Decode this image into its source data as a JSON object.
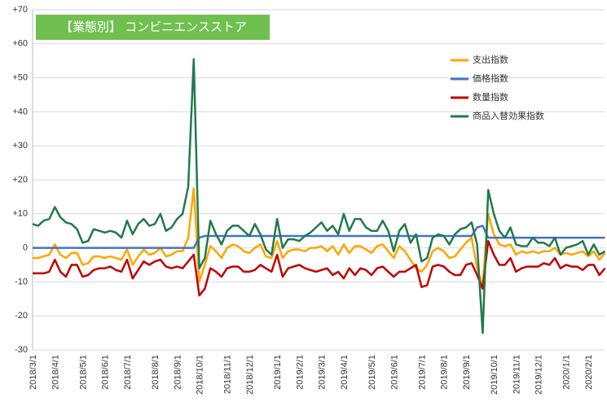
{
  "chart_data": {
    "type": "line",
    "title": "【業態別】 コンビニエンスストア",
    "categories": [
      "2018/3/1",
      null,
      null,
      null,
      "2018/4/1",
      null,
      null,
      null,
      null,
      "2018/5/1",
      null,
      null,
      null,
      "2018/6/1",
      null,
      null,
      null,
      "2018/7/1",
      null,
      null,
      null,
      null,
      "2018/8/1",
      null,
      null,
      null,
      "2018/9/1",
      null,
      null,
      null,
      "2018/10/1",
      null,
      null,
      null,
      null,
      "2018/11/1",
      null,
      null,
      null,
      "2018/12/1",
      null,
      null,
      null,
      null,
      "2019/1/1",
      null,
      null,
      null,
      "2019/2/1",
      null,
      null,
      null,
      "2019/3/1",
      null,
      null,
      null,
      "2019/4/1",
      null,
      null,
      null,
      null,
      "2019/5/1",
      null,
      null,
      null,
      "2019/6/1",
      null,
      null,
      null,
      null,
      "2019/7/1",
      null,
      null,
      null,
      "2019/8/1",
      null,
      null,
      null,
      "2019/9/1",
      null,
      null,
      null,
      null,
      "2019/10/1",
      null,
      null,
      null,
      "2019/11/1",
      null,
      null,
      null,
      "2019/12/1",
      null,
      null,
      null,
      null,
      "2020/1/1",
      null,
      null,
      null,
      "2020/2/1",
      null,
      null,
      null
    ],
    "series": [
      {
        "name": "支出指数",
        "color": "#ffa500",
        "values": [
          -3,
          -3,
          -2.5,
          -2,
          1,
          -2,
          -3,
          -1.5,
          -1.5,
          -5,
          -4.5,
          -2.5,
          -2.5,
          -3,
          -2.5,
          -3,
          -3.5,
          -0.5,
          -5,
          -2.5,
          -0.5,
          -2,
          -1.5,
          0,
          -2.5,
          -2,
          -1,
          -1,
          3,
          17.5,
          -10,
          -5,
          0.5,
          -1,
          -3,
          0,
          1,
          0.5,
          -1,
          -1.5,
          0,
          1,
          -2.5,
          -3,
          2,
          -3,
          -1,
          -0.5,
          -0.5,
          -1,
          0,
          0,
          0.5,
          -1,
          0.5,
          -2,
          1,
          -1.5,
          0.5,
          0.5,
          -0.5,
          -1.5,
          0.5,
          1,
          -1,
          -3,
          0.5,
          -1,
          -3.5,
          -6,
          -7,
          -5,
          -1,
          0,
          -1,
          -3,
          -2.5,
          -0.5,
          1.5,
          3,
          -6,
          -11,
          10,
          4,
          1,
          0.5,
          1,
          -2,
          -1,
          -1.5,
          -1,
          -1.5,
          -1,
          -1,
          0,
          -2,
          -1.5,
          -2,
          -1.5,
          -1,
          -2.5,
          -1,
          -3.5,
          -1.5
        ]
      },
      {
        "name": "価格指数",
        "color": "#4472c4",
        "values": [
          0,
          0,
          0,
          0,
          0,
          0,
          0,
          0,
          0,
          0,
          0,
          0,
          0,
          0,
          0,
          0,
          0,
          0,
          0,
          0,
          0,
          0,
          0,
          0,
          0,
          0,
          0,
          0,
          0,
          0,
          3,
          3.5,
          3.5,
          3.5,
          3.5,
          3.5,
          3.5,
          3.5,
          3.5,
          3.5,
          3.5,
          3.5,
          3.5,
          3.5,
          3.5,
          3.5,
          3.5,
          3.5,
          3.5,
          3.5,
          3.5,
          3.5,
          3.5,
          3.5,
          3.5,
          3.5,
          3.5,
          3.5,
          3.5,
          3.5,
          3.5,
          3.5,
          3.5,
          3.5,
          3.5,
          3.5,
          3.5,
          3.5,
          3.5,
          3.5,
          3.5,
          3.5,
          3.5,
          3.5,
          3.5,
          3.5,
          3.5,
          3.5,
          3.5,
          3.5,
          6,
          6.5,
          3,
          3,
          3,
          3,
          3,
          3,
          3,
          3,
          3,
          3,
          3,
          3,
          3,
          3,
          3,
          3,
          3,
          3,
          3,
          3,
          3,
          3
        ]
      },
      {
        "name": "数量指数",
        "color": "#c00000",
        "values": [
          -7.5,
          -7.5,
          -7.5,
          -7,
          -3.5,
          -7,
          -8.5,
          -5,
          -5,
          -8.5,
          -8,
          -6.5,
          -6,
          -6,
          -5.5,
          -6.5,
          -7,
          -3.5,
          -9,
          -6.5,
          -4,
          -5,
          -4,
          -3.5,
          -5.5,
          -6,
          -5.5,
          -6,
          -4,
          -2,
          -14,
          -12,
          -6,
          -7,
          -8.5,
          -6,
          -5.5,
          -5.5,
          -7,
          -7,
          -6.5,
          -5,
          -6,
          -7,
          -2,
          -8.5,
          -6,
          -5.5,
          -5,
          -6,
          -6.5,
          -7,
          -6.5,
          -6,
          -8,
          -7,
          -9,
          -6,
          -8,
          -6,
          -6.5,
          -8,
          -6,
          -5.5,
          -7,
          -8.5,
          -7,
          -7,
          -6,
          -5,
          -11.5,
          -11,
          -5.5,
          -5,
          -5.5,
          -7,
          -8,
          -8,
          -5,
          -4.5,
          -8,
          -12,
          2,
          -2,
          -5,
          -5,
          -3,
          -7,
          -6,
          -5.5,
          -5.5,
          -5.5,
          -4.5,
          -5,
          -3,
          -6,
          -5,
          -5.5,
          -5.5,
          -6.5,
          -5,
          -5,
          -8,
          -6
        ]
      },
      {
        "name": "商品入替効果指数",
        "color": "#217a4a",
        "values": [
          7,
          6.5,
          8,
          8.5,
          12,
          9,
          7.5,
          7,
          5.5,
          1.5,
          2,
          5.5,
          5,
          4.5,
          5,
          4.5,
          3,
          8,
          4,
          7,
          8.5,
          6.5,
          7,
          10,
          5,
          6,
          8.5,
          10,
          18,
          55.5,
          -6,
          -3,
          8,
          4,
          1,
          5,
          6.5,
          6.5,
          5,
          3.5,
          7,
          4,
          -0.5,
          -2,
          8.5,
          0,
          2.5,
          2.5,
          2,
          3.5,
          4.5,
          6,
          7.5,
          5,
          6.5,
          4,
          10,
          5,
          8.5,
          8.5,
          6,
          5,
          5,
          8,
          5,
          -1,
          5,
          7,
          1.5,
          4,
          -4,
          -3,
          3,
          4,
          3.5,
          1,
          4,
          5.5,
          6,
          7.5,
          1,
          -25,
          17,
          10,
          5,
          3,
          6,
          1,
          0.5,
          0.5,
          3,
          1.5,
          1.5,
          0.5,
          3,
          -2,
          0,
          0.5,
          1,
          2,
          -2,
          1,
          -2,
          -1
        ]
      }
    ],
    "ylim": [
      -30,
      70
    ],
    "yticks": [
      -30,
      -20,
      -10,
      0,
      {
        "value": 10,
        "label": "+10"
      },
      {
        "value": 20,
        "label": "+20"
      },
      {
        "value": 30,
        "label": "+30"
      },
      {
        "value": 40,
        "label": "+40"
      },
      {
        "value": 50,
        "label": "+50"
      },
      {
        "value": 60,
        "label": "+60"
      },
      {
        "value": 70,
        "label": "+70"
      }
    ],
    "grid": true,
    "legend": "upper right",
    "title_color": "#70c050"
  }
}
